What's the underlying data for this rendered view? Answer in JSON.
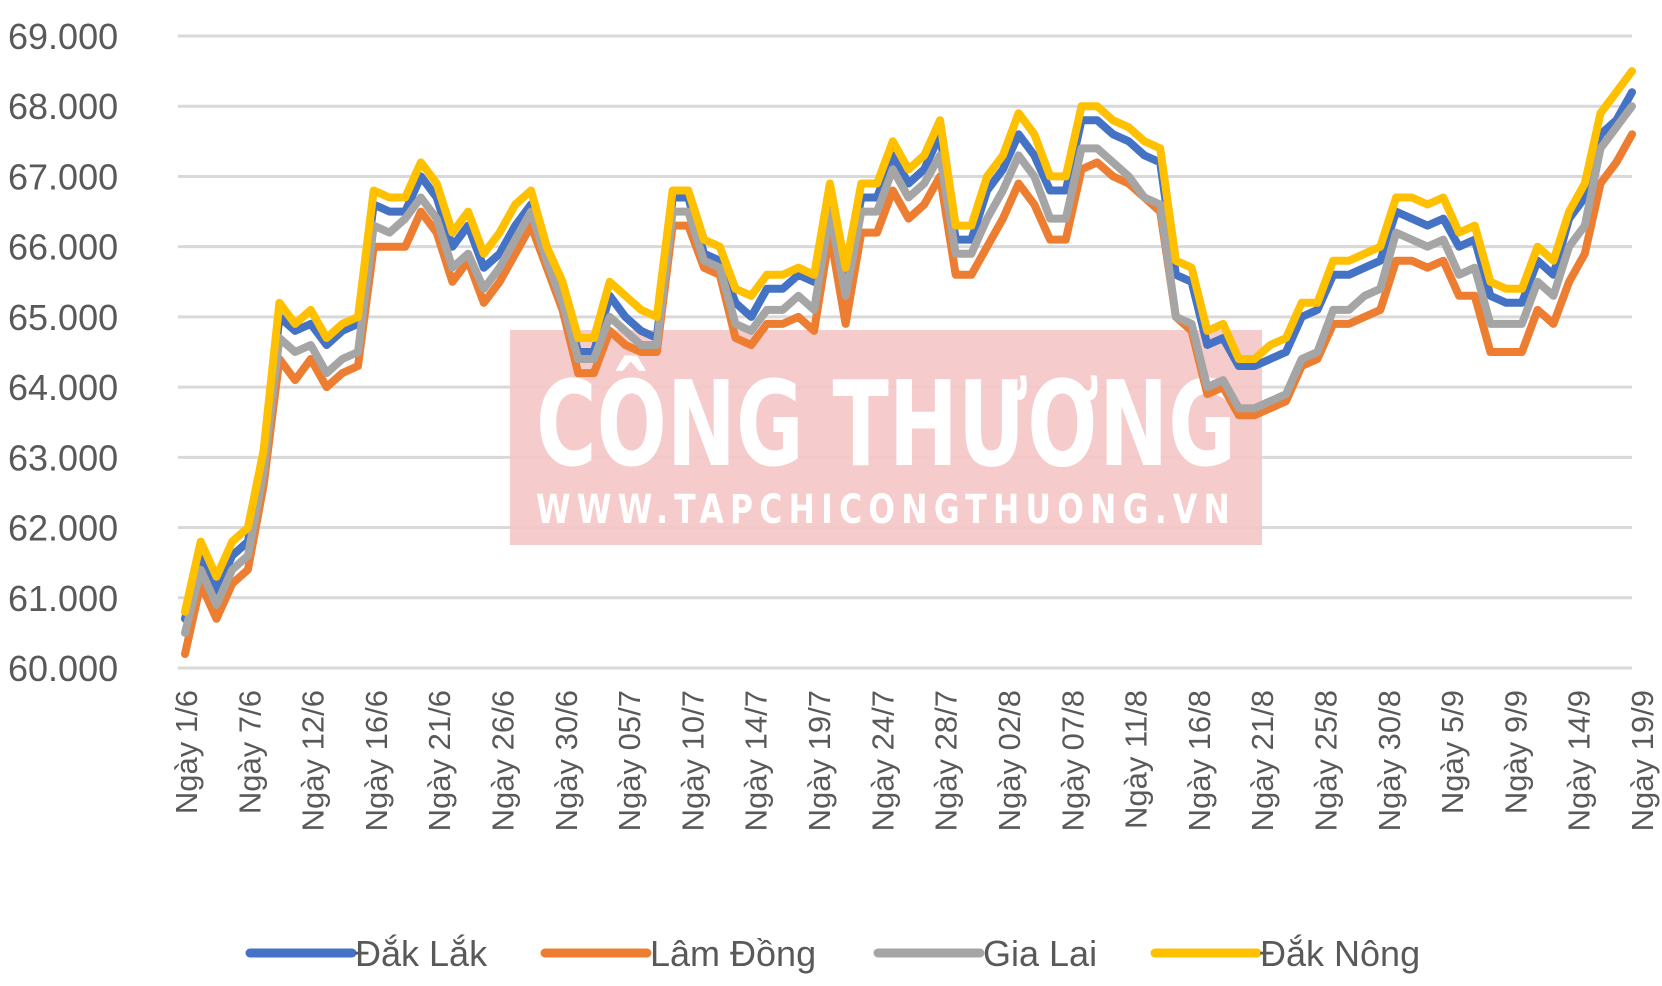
{
  "watermark": {
    "title": "CÔNG THƯƠNG",
    "url": "WWW.TAPCHICONGTHUONG.VN",
    "color": "#f5c5c5"
  },
  "chart_data": {
    "type": "line",
    "title": "",
    "xlabel": "",
    "ylabel": "",
    "ylim": [
      60000,
      69000
    ],
    "yticks": [
      60000,
      61000,
      62000,
      63000,
      64000,
      65000,
      66000,
      67000,
      68000,
      69000
    ],
    "ytick_labels": [
      "60.000",
      "61.000",
      "62.000",
      "63.000",
      "64.000",
      "65.000",
      "66.000",
      "67.000",
      "68.000",
      "69.000"
    ],
    "grid": true,
    "legend": "bottom",
    "x_tick_labels": [
      "Ngày 1/6",
      "Ngày 7/6",
      "Ngày 12/6",
      "Ngày 16/6",
      "Ngày 21/6",
      "Ngày 26/6",
      "Ngày 30/6",
      "Ngày 05/7",
      "Ngày 10/7",
      "Ngày 14/7",
      "Ngày 19/7",
      "Ngày 24/7",
      "Ngày 28/7",
      "Ngày 02/8",
      "Ngày 07/8",
      "Ngày 11/8",
      "Ngày 16/8",
      "Ngày 21/8",
      "Ngày 25/8",
      "Ngày 30/8",
      "Ngày 5/9",
      "Ngày 9/9",
      "Ngày 14/9",
      "Ngày 19/9"
    ],
    "series": [
      {
        "name": "Đắk Lắk",
        "color": "#4472c4",
        "values": [
          60700,
          61600,
          61100,
          61600,
          61800,
          62900,
          65000,
          64800,
          64900,
          64600,
          64800,
          64900,
          66600,
          66500,
          66500,
          67000,
          66700,
          66000,
          66300,
          65700,
          65900,
          66300,
          66600,
          65800,
          65300,
          64500,
          64500,
          65300,
          65000,
          64800,
          64700,
          66700,
          66700,
          65900,
          65800,
          65200,
          65000,
          65400,
          65400,
          65600,
          65500,
          66700,
          65500,
          66700,
          66700,
          67300,
          66900,
          67100,
          67600,
          66100,
          66100,
          66800,
          67100,
          67600,
          67300,
          66800,
          66800,
          67800,
          67800,
          67600,
          67500,
          67300,
          67200,
          65600,
          65500,
          64600,
          64700,
          64300,
          64300,
          64400,
          64500,
          65000,
          65100,
          65600,
          65600,
          65700,
          65800,
          66500,
          66400,
          66300,
          66400,
          66000,
          66100,
          65300,
          65200,
          65200,
          65800,
          65600,
          66400,
          66700,
          67600,
          67800,
          68200
        ]
      },
      {
        "name": "Lâm Đồng",
        "color": "#ed7d31",
        "values": [
          60200,
          61200,
          60700,
          61200,
          61400,
          62600,
          64400,
          64100,
          64400,
          64000,
          64200,
          64300,
          66000,
          66000,
          66000,
          66500,
          66200,
          65500,
          65800,
          65200,
          65500,
          65900,
          66300,
          65700,
          65100,
          64200,
          64200,
          64800,
          64600,
          64500,
          64500,
          66300,
          66300,
          65700,
          65600,
          64700,
          64600,
          64900,
          64900,
          65000,
          64800,
          66200,
          64900,
          66200,
          66200,
          66800,
          66400,
          66600,
          67000,
          65600,
          65600,
          66000,
          66400,
          66900,
          66600,
          66100,
          66100,
          67100,
          67200,
          67000,
          66900,
          66700,
          66500,
          65000,
          64800,
          63900,
          64000,
          63600,
          63600,
          63700,
          63800,
          64300,
          64400,
          64900,
          64900,
          65000,
          65100,
          65800,
          65800,
          65700,
          65800,
          65300,
          65300,
          64500,
          64500,
          64500,
          65100,
          64900,
          65500,
          65900,
          66900,
          67200,
          67600
        ]
      },
      {
        "name": "Gia Lai",
        "color": "#a5a5a5",
        "values": [
          60500,
          61400,
          60900,
          61400,
          61600,
          62800,
          64700,
          64500,
          64600,
          64200,
          64400,
          64500,
          66300,
          66200,
          66400,
          66700,
          66400,
          65700,
          65900,
          65400,
          65700,
          66100,
          66500,
          65800,
          65200,
          64400,
          64400,
          65000,
          64800,
          64600,
          64600,
          66500,
          66500,
          65800,
          65700,
          64900,
          64800,
          65100,
          65100,
          65300,
          65100,
          66500,
          65300,
          66500,
          66500,
          67100,
          66700,
          66900,
          67300,
          65900,
          65900,
          66400,
          66800,
          67300,
          67000,
          66400,
          66400,
          67400,
          67400,
          67200,
          67000,
          66700,
          66600,
          65000,
          64900,
          64000,
          64100,
          63700,
          63700,
          63800,
          63900,
          64400,
          64500,
          65100,
          65100,
          65300,
          65400,
          66200,
          66100,
          66000,
          66100,
          65600,
          65700,
          64900,
          64900,
          64900,
          65500,
          65300,
          66000,
          66300,
          67400,
          67700,
          68000
        ]
      },
      {
        "name": "Đắk Nông",
        "color": "#ffc000",
        "values": [
          60800,
          61800,
          61300,
          61800,
          62000,
          63100,
          65200,
          64900,
          65100,
          64700,
          64900,
          65000,
          66800,
          66700,
          66700,
          67200,
          66900,
          66200,
          66500,
          65900,
          66200,
          66600,
          66800,
          66000,
          65500,
          64700,
          64700,
          65500,
          65300,
          65100,
          65000,
          66800,
          66800,
          66100,
          66000,
          65400,
          65300,
          65600,
          65600,
          65700,
          65600,
          66900,
          65700,
          66900,
          66900,
          67500,
          67100,
          67300,
          67800,
          66300,
          66300,
          67000,
          67300,
          67900,
          67600,
          67000,
          67000,
          68000,
          68000,
          67800,
          67700,
          67500,
          67400,
          65800,
          65700,
          64800,
          64900,
          64400,
          64400,
          64600,
          64700,
          65200,
          65200,
          65800,
          65800,
          65900,
          66000,
          66700,
          66700,
          66600,
          66700,
          66200,
          66300,
          65500,
          65400,
          65400,
          66000,
          65800,
          66500,
          66900,
          67900,
          68200,
          68500
        ]
      }
    ]
  }
}
